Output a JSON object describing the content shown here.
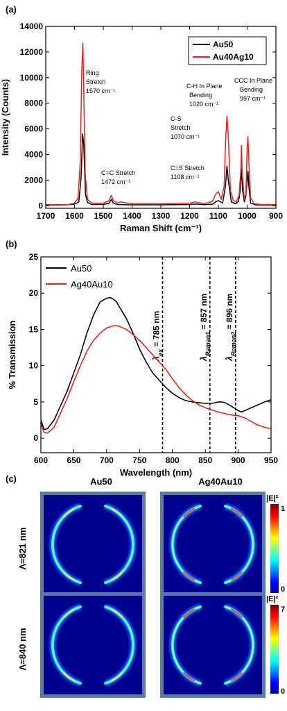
{
  "chart_data": [
    {
      "type": "line",
      "panel_label": "(a)",
      "xlabel": "Raman Shift (cm⁻¹)",
      "ylabel": "Intensity (Counts)",
      "xlim": [
        1700,
        900
      ],
      "ylim": [
        -200,
        14000
      ],
      "x_ticks": [
        "1700",
        "1600",
        "1500",
        "1400",
        "1300",
        "1200",
        "1100",
        "1000",
        "900"
      ],
      "y_ticks": [
        "0",
        "2000",
        "4000",
        "6000",
        "8000",
        "10000",
        "12000",
        "14000"
      ],
      "legend": {
        "placement": "top-right",
        "entries": [
          "Au50",
          "Au40Ag10"
        ]
      },
      "series": [
        {
          "name": "Au50",
          "color": "#000000",
          "x": [
            1700,
            1660,
            1620,
            1600,
            1585,
            1577,
            1572,
            1568,
            1562,
            1555,
            1540,
            1500,
            1480,
            1472,
            1465,
            1450,
            1400,
            1300,
            1200,
            1180,
            1150,
            1120,
            1110,
            1100,
            1085,
            1075,
            1070,
            1065,
            1055,
            1040,
            1030,
            1024,
            1020,
            1016,
            1010,
            1005,
            1000,
            997,
            994,
            988,
            970,
            950,
            900
          ],
          "y": [
            60,
            60,
            80,
            120,
            300,
            2200,
            5600,
            4800,
            900,
            250,
            100,
            100,
            200,
            500,
            200,
            90,
            70,
            70,
            90,
            130,
            80,
            120,
            300,
            400,
            200,
            1600,
            3100,
            1900,
            300,
            150,
            350,
            1200,
            2900,
            1200,
            300,
            700,
            1900,
            2700,
            1500,
            200,
            60,
            50,
            50
          ]
        },
        {
          "name": "Au40Ag10",
          "color": "#e8231f",
          "x": [
            1700,
            1660,
            1620,
            1600,
            1588,
            1580,
            1575,
            1571,
            1568,
            1563,
            1555,
            1540,
            1500,
            1480,
            1472,
            1465,
            1450,
            1440,
            1400,
            1300,
            1200,
            1180,
            1150,
            1120,
            1110,
            1100,
            1090,
            1080,
            1074,
            1070,
            1066,
            1058,
            1048,
            1038,
            1028,
            1022,
            1020,
            1017,
            1010,
            1004,
            1000,
            997,
            994,
            988,
            975,
            950,
            900
          ],
          "y": [
            80,
            80,
            100,
            200,
            600,
            3500,
            10500,
            12700,
            9000,
            2500,
            500,
            200,
            200,
            400,
            800,
            400,
            200,
            300,
            150,
            150,
            200,
            300,
            150,
            350,
            900,
            1100,
            500,
            1500,
            5500,
            7000,
            5600,
            1200,
            400,
            300,
            800,
            2800,
            4700,
            2600,
            500,
            1000,
            4500,
            5400,
            3400,
            600,
            150,
            100,
            80
          ]
        }
      ],
      "annotations": [
        {
          "lines": [
            "Ring",
            "Stretch",
            "1570 cm⁻¹"
          ]
        },
        {
          "lines": [
            "C=C  Stretch",
            "1472 cm⁻¹"
          ]
        },
        {
          "lines": [
            "C=S Stretch",
            "1108 cm⁻¹"
          ]
        },
        {
          "lines": [
            "C-S",
            "Stretch",
            "1070 cm⁻¹"
          ]
        },
        {
          "lines": [
            "C-H In Plane",
            "Bending",
            "1020 cm⁻¹"
          ]
        },
        {
          "lines": [
            "CCC In Plane",
            "Bending",
            "997 cm⁻¹"
          ]
        }
      ]
    },
    {
      "type": "line",
      "panel_label": "(b)",
      "xlabel": "Wavelength (nm)",
      "ylabel": "% Transmission",
      "xlim": [
        600,
        950
      ],
      "ylim": [
        -2,
        25
      ],
      "x_ticks": [
        "600",
        "650",
        "700",
        "750",
        "800",
        "850",
        "900",
        "950"
      ],
      "y_ticks": [
        "0",
        "5",
        "10",
        "15",
        "20",
        "25"
      ],
      "legend": {
        "placement": "top-left",
        "entries": [
          "Au50",
          "Ag40Au10"
        ]
      },
      "series": [
        {
          "name": "Au50",
          "color": "#000000",
          "x": [
            600,
            605,
            610,
            620,
            630,
            640,
            650,
            660,
            670,
            680,
            690,
            700,
            705,
            710,
            715,
            720,
            730,
            740,
            750,
            760,
            770,
            780,
            790,
            800,
            810,
            820,
            830,
            840,
            850,
            860,
            870,
            875,
            880,
            890,
            900,
            905,
            910,
            920,
            930,
            940,
            950
          ],
          "y": [
            2.5,
            1.2,
            1.3,
            2.5,
            4.5,
            6.5,
            9.0,
            11.5,
            14.5,
            17.0,
            18.8,
            19.3,
            19.4,
            19.2,
            18.8,
            18.0,
            16.5,
            14.5,
            12.3,
            10.5,
            9.0,
            8.0,
            7.0,
            6.2,
            5.6,
            5.2,
            5.0,
            4.9,
            4.8,
            4.8,
            5.0,
            5.0,
            4.9,
            4.4,
            3.8,
            3.6,
            3.8,
            4.2,
            4.6,
            5.0,
            5.3
          ]
        },
        {
          "name": "Ag40Au10",
          "color": "#e8231f",
          "x": [
            600,
            605,
            610,
            620,
            630,
            640,
            650,
            660,
            670,
            680,
            690,
            700,
            710,
            715,
            720,
            730,
            740,
            750,
            760,
            770,
            780,
            790,
            800,
            810,
            820,
            830,
            840,
            850,
            860,
            870,
            880,
            890,
            900,
            910,
            920,
            930,
            940,
            950
          ],
          "y": [
            2.0,
            0.8,
            0.7,
            1.5,
            3.5,
            5.5,
            7.8,
            10.0,
            12.0,
            13.5,
            14.5,
            15.2,
            15.5,
            15.5,
            15.4,
            15.0,
            14.3,
            13.5,
            12.5,
            11.5,
            10.5,
            9.5,
            8.2,
            7.0,
            6.0,
            5.2,
            4.6,
            4.2,
            3.9,
            3.6,
            3.4,
            3.2,
            3.1,
            2.8,
            2.3,
            1.8,
            1.5,
            1.3
          ]
        }
      ],
      "vlines": [
        {
          "x": 785,
          "label": "λ",
          "sub": "ex",
          "value": " = 785 nm"
        },
        {
          "x": 857,
          "label": "λ",
          "sub": "Raman1",
          "value": " = 857 nm"
        },
        {
          "x": 896,
          "label": "λ",
          "sub": "Raman2",
          "value": " = 896 nm"
        }
      ]
    },
    {
      "type": "heatmap",
      "panel_label": "(c)",
      "columns": [
        "Au50",
        "Ag40Au10"
      ],
      "rows": [
        {
          "label": "Λ=821 nm",
          "colorbar_title": "|E|²",
          "cmax": "1",
          "cmin": "0",
          "relative_intensity": [
            0.55,
            0.85
          ]
        },
        {
          "label": "Λ=840 nm",
          "colorbar_title": "|E|²",
          "cmax": "7",
          "cmin": "0",
          "relative_intensity": [
            0.55,
            0.9
          ]
        }
      ]
    }
  ]
}
